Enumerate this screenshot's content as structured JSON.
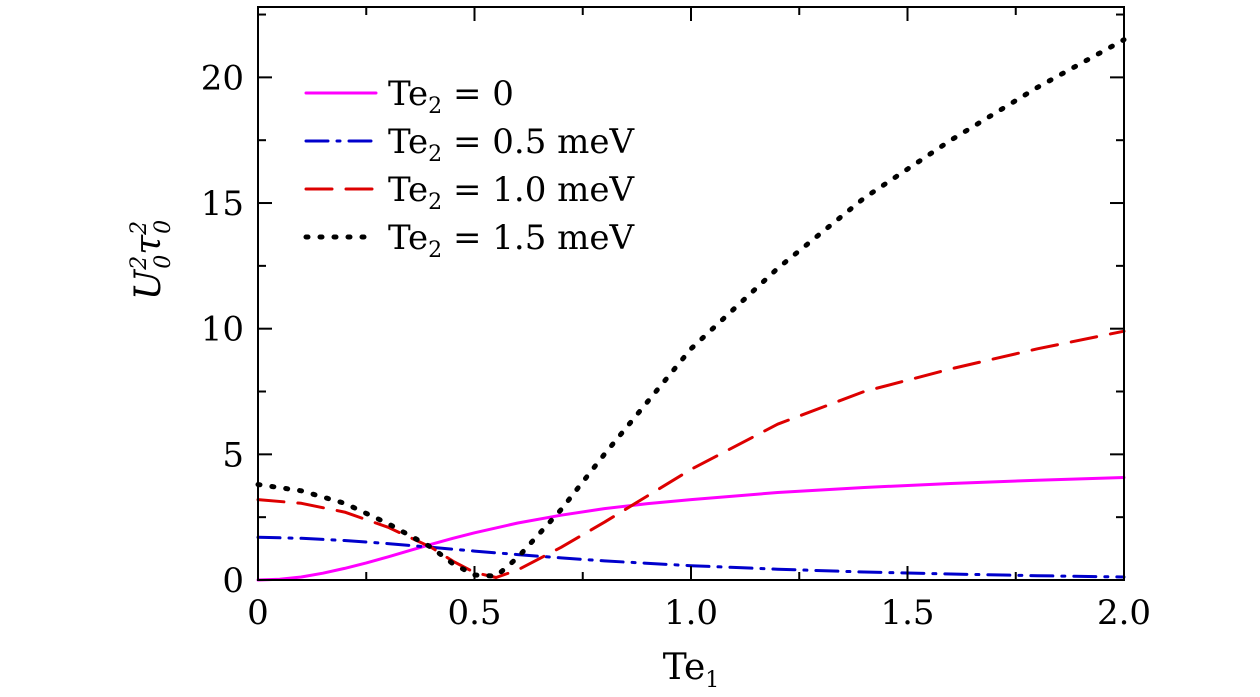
{
  "chart_data": {
    "type": "line",
    "title": "",
    "xlabel": {
      "base": "Te",
      "sub": "1"
    },
    "ylabel": {
      "base": "U",
      "sup1": "2",
      "sub1": "0",
      "mid": "τ",
      "sup2": "2",
      "sub2": "0"
    },
    "xlim": [
      0,
      2.0
    ],
    "ylim": [
      0,
      22.8
    ],
    "x_ticks": [
      0,
      0.5,
      1.0,
      1.5,
      2.0
    ],
    "x_tick_labels": [
      "0",
      "0.5",
      "1.0",
      "1.5",
      "2.0"
    ],
    "y_ticks": [
      0,
      5,
      10,
      15,
      20
    ],
    "y_tick_labels": [
      "0",
      "5",
      "10",
      "15",
      "20"
    ],
    "legend_position": "top-left",
    "series": [
      {
        "name": "Te2 = 0",
        "label_base": "Te",
        "label_sub": "2",
        "label_rest": " = 0",
        "color": "#ff00ff",
        "style": "solid",
        "x": [
          0,
          0.05,
          0.1,
          0.15,
          0.2,
          0.25,
          0.3,
          0.35,
          0.4,
          0.45,
          0.5,
          0.6,
          0.7,
          0.8,
          0.9,
          1.0,
          1.2,
          1.4,
          1.6,
          1.8,
          2.0
        ],
        "y": [
          0,
          0.03,
          0.12,
          0.27,
          0.46,
          0.68,
          0.92,
          1.17,
          1.42,
          1.66,
          1.88,
          2.27,
          2.58,
          2.84,
          3.04,
          3.2,
          3.48,
          3.68,
          3.84,
          3.97,
          4.08
        ]
      },
      {
        "name": "Te2 = 0.5 meV",
        "label_base": "Te",
        "label_sub": "2",
        "label_rest": " = 0.5 meV",
        "color": "#0000cc",
        "style": "dashdot",
        "x": [
          0,
          0.1,
          0.2,
          0.3,
          0.4,
          0.5,
          0.6,
          0.7,
          0.8,
          1.0,
          1.2,
          1.4,
          1.6,
          1.8,
          2.0
        ],
        "y": [
          1.7,
          1.66,
          1.57,
          1.45,
          1.3,
          1.15,
          1.01,
          0.88,
          0.76,
          0.57,
          0.43,
          0.32,
          0.24,
          0.17,
          0.12
        ]
      },
      {
        "name": "Te2 = 1.0 meV",
        "label_base": "Te",
        "label_sub": "2",
        "label_rest": " = 1.0 meV",
        "color": "#dd0000",
        "style": "dashed",
        "x": [
          0,
          0.1,
          0.2,
          0.3,
          0.4,
          0.45,
          0.5,
          0.55,
          0.6,
          0.7,
          0.8,
          0.9,
          1.0,
          1.2,
          1.4,
          1.6,
          1.8,
          2.0
        ],
        "y": [
          3.2,
          3.05,
          2.7,
          2.1,
          1.3,
          0.75,
          0.3,
          0.1,
          0.4,
          1.3,
          2.3,
          3.35,
          4.4,
          6.2,
          7.5,
          8.4,
          9.2,
          9.9
        ]
      },
      {
        "name": "Te2 = 1.5 meV",
        "label_base": "Te",
        "label_sub": "2",
        "label_rest": " = 1.5 meV",
        "color": "#000000",
        "style": "dotted",
        "x": [
          0,
          0.1,
          0.2,
          0.3,
          0.4,
          0.45,
          0.5,
          0.55,
          0.6,
          0.7,
          0.8,
          1.0,
          1.2,
          1.4,
          1.6,
          1.8,
          2.0
        ],
        "y": [
          3.8,
          3.55,
          3.05,
          2.25,
          1.3,
          0.65,
          0.2,
          0.15,
          0.9,
          2.8,
          5.0,
          9.2,
          12.4,
          15.2,
          17.5,
          19.6,
          21.5
        ]
      }
    ]
  }
}
